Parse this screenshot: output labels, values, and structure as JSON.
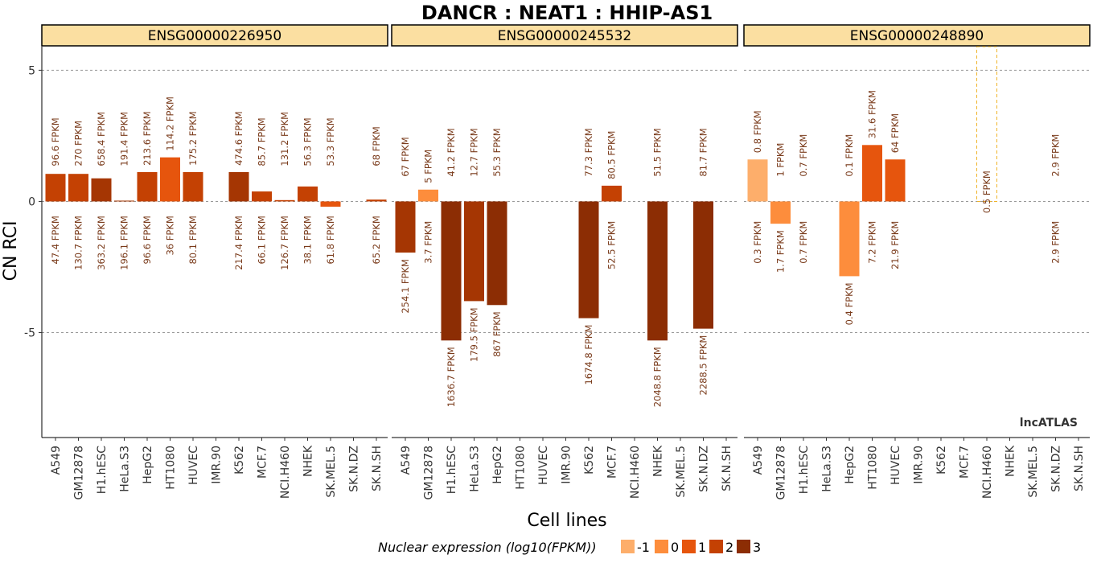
{
  "chart_data": {
    "type": "bar",
    "title": "DANCR : NEAT1 : HHIP-AS1",
    "xlabel": "Cell lines",
    "ylabel": "CN RCI",
    "ylim": [
      -9,
      5.9
    ],
    "yticks": [
      5,
      0,
      -5
    ],
    "ytick_labels": [
      "5",
      "0",
      "-5"
    ],
    "grid": true,
    "watermark": "lncATLAS",
    "categories": [
      "A549",
      "GM12878",
      "H1.hESC",
      "HeLa.S3",
      "HepG2",
      "HT1080",
      "HUVEC",
      "IMR.90",
      "K562",
      "MCF.7",
      "NCI.H460",
      "NHEK",
      "SK.MEL.5",
      "SK.N.DZ",
      "SK.N.SH"
    ],
    "legend": {
      "title": "Nuclear expression (log10(FPKM))",
      "placement": "bottom",
      "items": [
        {
          "label": "-1",
          "color": "#fdae6b"
        },
        {
          "label": "0",
          "color": "#fd8d3c"
        },
        {
          "label": "1",
          "color": "#e6550d"
        },
        {
          "label": "2",
          "color": "#c44103"
        },
        {
          "label": "3",
          "color": "#8c2d04"
        }
      ]
    },
    "panels": [
      {
        "name": "ENSG00000226950",
        "values": [
          1.05,
          1.05,
          0.88,
          0.03,
          1.12,
          1.68,
          1.12,
          null,
          1.12,
          0.38,
          0.05,
          0.57,
          -0.2,
          null,
          0.07
        ],
        "colors": [
          "#c44103",
          "#c44103",
          "#a53603",
          "#a53603",
          "#c44103",
          "#e6550d",
          "#c44103",
          null,
          "#a53603",
          "#c44103",
          "#c44103",
          "#c44103",
          "#e6550d",
          null,
          "#c44103"
        ],
        "top_labels": [
          "96.6 FPKM",
          "270 FPKM",
          "658.4 FPKM",
          "191.4 FPKM",
          "213.6 FPKM",
          "114.2 FPKM",
          "175.2 FPKM",
          "",
          "474.6 FPKM",
          "85.7 FPKM",
          "131.2 FPKM",
          "56.3 FPKM",
          "53.3 FPKM",
          "",
          "68 FPKM"
        ],
        "bottom_labels": [
          "47.4 FPKM",
          "130.7 FPKM",
          "363.2 FPKM",
          "196.1 FPKM",
          "96.6 FPKM",
          "36 FPKM",
          "80.1 FPKM",
          "",
          "217.4 FPKM",
          "66.1 FPKM",
          "126.7 FPKM",
          "38.1 FPKM",
          "61.8 FPKM",
          "",
          "65.2 FPKM"
        ]
      },
      {
        "name": "ENSG00000245532",
        "values": [
          -1.95,
          0.45,
          -5.3,
          -3.8,
          -3.95,
          null,
          null,
          null,
          -4.45,
          0.6,
          null,
          -5.3,
          null,
          -4.85,
          null
        ],
        "colors": [
          "#a53603",
          "#fd8d3c",
          "#8c2d04",
          "#a53603",
          "#8c2d04",
          null,
          null,
          null,
          "#8c2d04",
          "#c44103",
          null,
          "#8c2d04",
          null,
          "#8c2d04",
          null
        ],
        "top_labels": [
          "67 FPKM",
          "5 FPKM",
          "41.2 FPKM",
          "12.7 FPKM",
          "55.3 FPKM",
          "",
          "",
          "",
          "77.3 FPKM",
          "80.5 FPKM",
          "",
          "51.5 FPKM",
          "",
          "81.7 FPKM",
          ""
        ],
        "bottom_labels": [
          "254.1 FPKM",
          "3.7 FPKM",
          "1636.7 FPKM",
          "179.5 FPKM",
          "867 FPKM",
          "",
          "",
          "",
          "1674.8 FPKM",
          "52.5 FPKM",
          "",
          "2048.8 FPKM",
          "",
          "2288.5 FPKM",
          ""
        ],
        "label_positions": [
          0,
          1,
          2,
          3,
          4,
          null,
          null,
          null,
          8,
          9,
          null,
          11,
          null,
          13,
          null
        ]
      },
      {
        "name": "ENSG00000248890",
        "values": [
          1.6,
          -0.85,
          null,
          null,
          -2.85,
          2.15,
          1.6,
          null,
          null,
          null,
          null,
          null,
          null,
          null,
          null
        ],
        "colors": [
          "#fdae6b",
          "#fd8d3c",
          null,
          null,
          "#fd8d3c",
          "#e6550d",
          "#e6550d",
          null,
          null,
          null,
          null,
          null,
          null,
          null,
          null
        ],
        "top_labels": [
          "0.8 FPKM",
          "1 FPKM",
          "0.7 FPKM",
          "",
          "0.1 FPKM",
          "31.6 FPKM",
          "64 FPKM",
          "",
          "",
          "",
          "0.5 FPKM",
          "",
          "",
          "2.9 FPKM",
          ""
        ],
        "bottom_labels": [
          "0.3 FPKM",
          "1.7 FPKM",
          "0.7 FPKM",
          "",
          "0.4 FPKM",
          "7.2 FPKM",
          "21.9 FPKM",
          "",
          "",
          "",
          "",
          "",
          "",
          "2.9 FPKM",
          ""
        ],
        "infinite_bars": [
          10
        ]
      }
    ]
  }
}
